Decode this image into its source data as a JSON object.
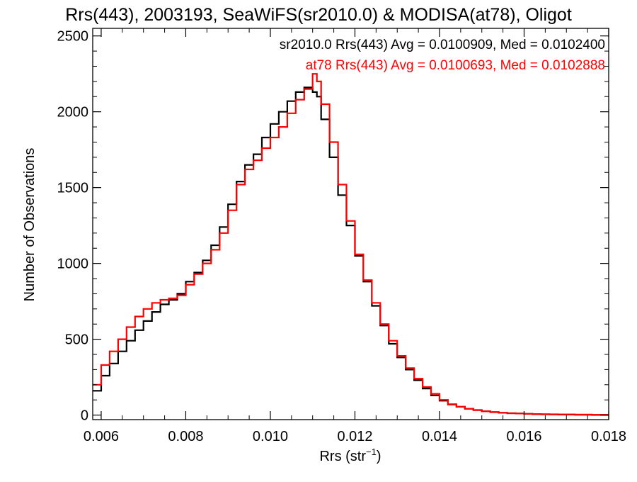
{
  "chart_data": {
    "type": "line",
    "title": "Rrs(443), 2003193, SeaWiFS(sr2010.0) & MODISA(at78), Oligot",
    "xlabel": "Rrs (str",
    "xlabel_superscript": "−1",
    "xlabel_suffix": ")",
    "ylabel": "Number of Observations",
    "xlim": [
      0.0058,
      0.018
    ],
    "ylim": [
      -30,
      2550
    ],
    "x_ticks": [
      0.006,
      0.008,
      0.01,
      0.012,
      0.014,
      0.016,
      0.018
    ],
    "x_tick_labels": [
      "0.006",
      "0.008",
      "0.010",
      "0.012",
      "0.014",
      "0.016",
      "0.018"
    ],
    "y_ticks": [
      0,
      500,
      1000,
      1500,
      2000,
      2500
    ],
    "y_tick_labels": [
      "0",
      "500",
      "1000",
      "1500",
      "2000",
      "2500"
    ],
    "grid": false,
    "legend_placement": "top-right",
    "annotations": [
      {
        "text": "sr2010.0 Rrs(443) Avg = 0.0100909, Med = 0.0102400",
        "color": "#000000"
      },
      {
        "text": "at78 Rrs(443) Avg = 0.0100693, Med = 0.0102888",
        "color": "#ff0000"
      }
    ],
    "series": [
      {
        "color": "#000000",
        "style": "step",
        "x": [
          0.0058,
          0.006,
          0.0062,
          0.0064,
          0.0066,
          0.0068,
          0.007,
          0.0072,
          0.0074,
          0.0076,
          0.0078,
          0.008,
          0.0082,
          0.0084,
          0.0086,
          0.0088,
          0.009,
          0.0092,
          0.0094,
          0.0096,
          0.0098,
          0.01,
          0.0102,
          0.0104,
          0.0106,
          0.0108,
          0.011,
          0.0111,
          0.0112,
          0.0114,
          0.0116,
          0.0118,
          0.012,
          0.0122,
          0.0124,
          0.0126,
          0.0128,
          0.013,
          0.0132,
          0.0134,
          0.0136,
          0.0138,
          0.014,
          0.0142,
          0.0144,
          0.0146,
          0.0148,
          0.015,
          0.0152,
          0.0154,
          0.0156,
          0.0158,
          0.016,
          0.0162,
          0.0164,
          0.0166,
          0.0168,
          0.017,
          0.0172,
          0.0174,
          0.0176,
          0.0178,
          0.018
        ],
        "y": [
          160,
          260,
          340,
          420,
          490,
          560,
          620,
          680,
          730,
          760,
          800,
          880,
          940,
          1020,
          1120,
          1240,
          1390,
          1540,
          1650,
          1720,
          1830,
          1920,
          2000,
          2070,
          2130,
          2160,
          2130,
          2100,
          1950,
          1700,
          1450,
          1250,
          1050,
          880,
          720,
          590,
          470,
          380,
          300,
          230,
          175,
          130,
          95,
          70,
          55,
          42,
          33,
          25,
          20,
          15,
          12,
          10,
          8,
          6,
          5,
          4,
          3,
          3,
          2,
          2,
          1,
          1,
          1
        ]
      },
      {
        "color": "#ff0000",
        "style": "step",
        "x": [
          0.0058,
          0.006,
          0.0062,
          0.0064,
          0.0066,
          0.0068,
          0.007,
          0.0072,
          0.0074,
          0.0076,
          0.0078,
          0.008,
          0.0082,
          0.0084,
          0.0086,
          0.0088,
          0.009,
          0.0092,
          0.0094,
          0.0096,
          0.0098,
          0.01,
          0.0102,
          0.0104,
          0.0106,
          0.0108,
          0.011,
          0.0111,
          0.0112,
          0.0114,
          0.0116,
          0.0118,
          0.012,
          0.0122,
          0.0124,
          0.0126,
          0.0128,
          0.013,
          0.0132,
          0.0134,
          0.0136,
          0.0138,
          0.014,
          0.0142,
          0.0144,
          0.0146,
          0.0148,
          0.015,
          0.0152,
          0.0154,
          0.0156,
          0.0158,
          0.016,
          0.0162,
          0.0164,
          0.0166,
          0.0168,
          0.017,
          0.0172,
          0.0174,
          0.0176,
          0.0178,
          0.018
        ],
        "y": [
          200,
          330,
          420,
          500,
          580,
          650,
          700,
          740,
          760,
          770,
          790,
          860,
          930,
          1000,
          1090,
          1200,
          1350,
          1520,
          1620,
          1680,
          1760,
          1830,
          1900,
          1990,
          2080,
          2150,
          2250,
          2200,
          2050,
          1800,
          1520,
          1280,
          1060,
          890,
          740,
          600,
          490,
          390,
          310,
          240,
          185,
          140,
          100,
          72,
          55,
          42,
          32,
          25,
          19,
          15,
          12,
          10,
          8,
          7,
          6,
          5,
          4,
          4,
          3,
          3,
          2,
          2,
          2
        ]
      }
    ]
  }
}
